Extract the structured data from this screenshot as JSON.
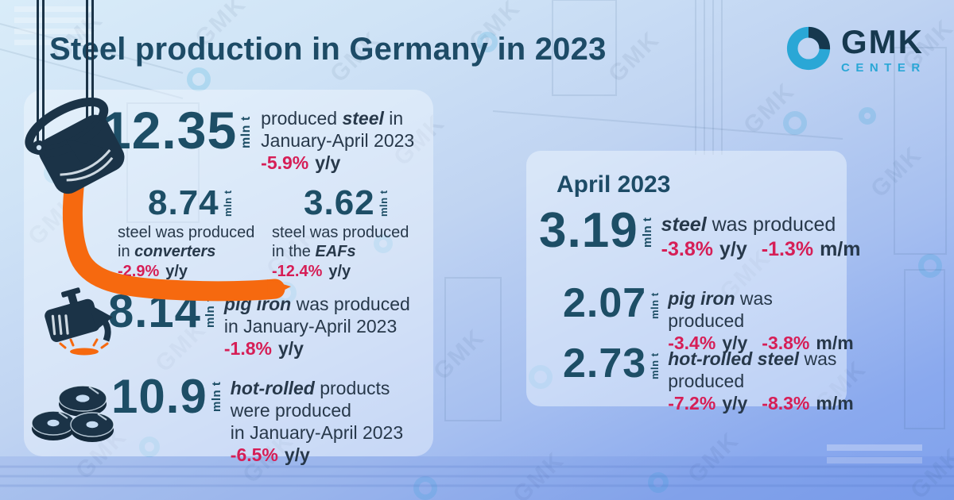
{
  "title": "Steel production in Germany in 2023",
  "logo": {
    "name": "GMK",
    "sub": "CENTER"
  },
  "unit_label": "mln t",
  "background": {
    "watermark": "GMK"
  },
  "period_panel": {
    "steel": {
      "value": "12.35",
      "pre": "produced ",
      "italic": "steel",
      "post": " in",
      "line2": "January-April 2023",
      "delta": "-5.9%",
      "delta_label": "y/y"
    },
    "converters": {
      "value": "8.74",
      "line1": "steel was produced",
      "pre": "in ",
      "italic": "converters",
      "post": "",
      "delta": "-2.9%",
      "delta_label": "y/y"
    },
    "eafs": {
      "value": "3.62",
      "line1": "steel was produced",
      "pre": "in the ",
      "italic": "EAFs",
      "post": "",
      "delta": "-12.4%",
      "delta_label": "y/y"
    },
    "pig_iron": {
      "value": "8.14",
      "italic": "pig iron",
      "post": " was produced",
      "line2": "in January-April 2023",
      "delta": "-1.8%",
      "delta_label": "y/y"
    },
    "hot_rolled": {
      "value": "10.9",
      "italic": "hot-rolled",
      "post": " products",
      "line2": "were produced",
      "line3": "in January-April 2023",
      "delta": "-6.5%",
      "delta_label": "y/y"
    }
  },
  "april_panel": {
    "heading": "April 2023",
    "steel": {
      "value": "3.19",
      "italic": "steel",
      "post": " was produced",
      "yoy": "-3.8%",
      "yoy_label": "y/y",
      "mom": "-1.3%",
      "mom_label": "m/m"
    },
    "pig_iron": {
      "value": "2.07",
      "italic": "pig iron",
      "post": " was produced",
      "yoy": "-3.4%",
      "yoy_label": "y/y",
      "mom": "-3.8%",
      "mom_label": "m/m"
    },
    "hot_rolled": {
      "value": "2.73",
      "italic": "hot-rolled steel",
      "post": " was produced",
      "yoy": "-7.2%",
      "yoy_label": "y/y",
      "mom": "-8.3%",
      "mom_label": "m/m"
    }
  },
  "colors": {
    "accent_orange": "#f6690f",
    "crimson": "#d61e56",
    "dark_teal": "#1d4e66",
    "body_text": "#27384a",
    "icon_dark": "#1b3347",
    "logo_cyan": "#2aa7d6",
    "logo_navy": "#16384e"
  },
  "chart_data": {
    "type": "table",
    "title": "Steel production in Germany in 2023",
    "unit": "mln t",
    "sections": [
      {
        "period": "January-April 2023",
        "rows": [
          {
            "indicator": "steel produced",
            "value": 12.35,
            "yoy_pct": -5.9
          },
          {
            "indicator": "steel produced in converters",
            "value": 8.74,
            "yoy_pct": -2.9
          },
          {
            "indicator": "steel produced in the EAFs",
            "value": 3.62,
            "yoy_pct": -12.4
          },
          {
            "indicator": "pig iron produced",
            "value": 8.14,
            "yoy_pct": -1.8
          },
          {
            "indicator": "hot-rolled products produced",
            "value": 10.9,
            "yoy_pct": -6.5
          }
        ]
      },
      {
        "period": "April 2023",
        "rows": [
          {
            "indicator": "steel produced",
            "value": 3.19,
            "yoy_pct": -3.8,
            "mom_pct": -1.3
          },
          {
            "indicator": "pig iron produced",
            "value": 2.07,
            "yoy_pct": -3.4,
            "mom_pct": -3.8
          },
          {
            "indicator": "hot-rolled steel produced",
            "value": 2.73,
            "yoy_pct": -7.2,
            "mom_pct": -8.3
          }
        ]
      }
    ]
  }
}
